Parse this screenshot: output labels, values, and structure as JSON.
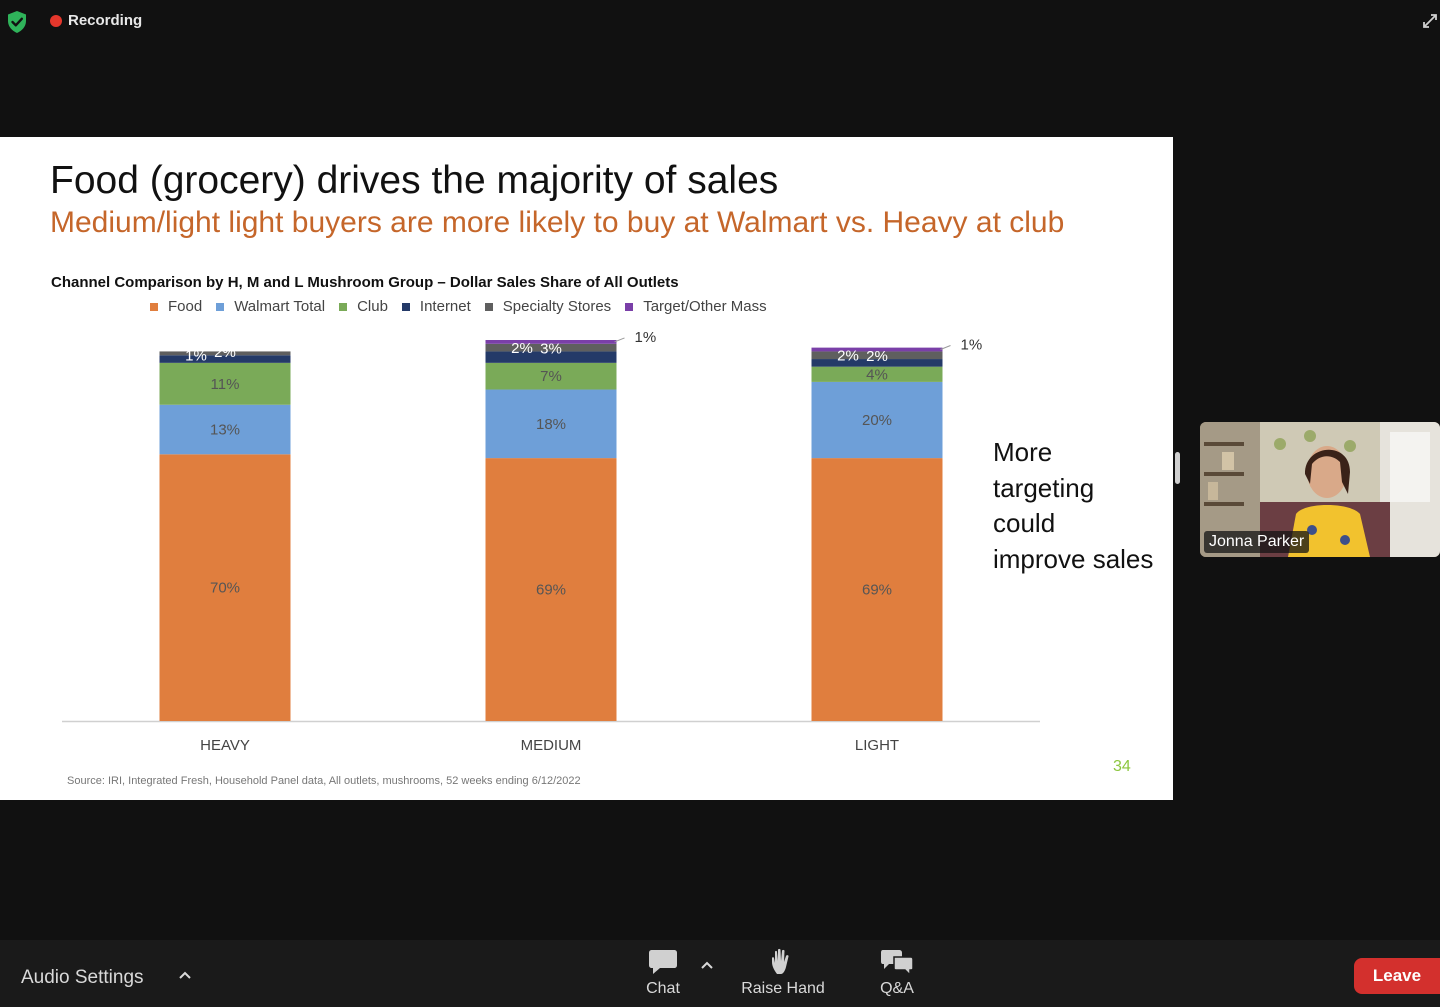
{
  "topbar": {
    "recording_label": "Recording",
    "colors": {
      "recording_dot": "#e5372c",
      "shield": "#2fb35a"
    }
  },
  "slide": {
    "title": "Food (grocery) drives the majority of sales",
    "subtitle": "Medium/light light buyers are more likely to buy at Walmart vs. Heavy at club",
    "side_note_lines": [
      "More",
      "targeting",
      "could",
      "improve sales"
    ],
    "page_number": "34",
    "source": "Source: IRI, Integrated Fresh, Household Panel data, All outlets, mushrooms, 52 weeks ending 6/12/2022"
  },
  "chart_data": {
    "type": "bar",
    "stacked": true,
    "title": "Channel Comparison by H, M and L Mushroom Group – Dollar Sales Share of All Outlets",
    "categories": [
      "HEAVY",
      "MEDIUM",
      "LIGHT"
    ],
    "legend_position": "top",
    "grid": false,
    "ylim": [
      0,
      100
    ],
    "series": [
      {
        "name": "Food",
        "color": "#e07e3e",
        "values": [
          70,
          69,
          69
        ],
        "labels": [
          "70%",
          "69%",
          "69%"
        ]
      },
      {
        "name": "Walmart Total",
        "color": "#6e9fd8",
        "values": [
          13,
          18,
          20
        ],
        "labels": [
          "13%",
          "18%",
          "20%"
        ]
      },
      {
        "name": "Club",
        "color": "#7aaa58",
        "values": [
          11,
          7,
          4
        ],
        "labels": [
          "11%",
          "7%",
          "4%"
        ]
      },
      {
        "name": "Internet",
        "color": "#243a68",
        "values": [
          2,
          3,
          2
        ],
        "labels": [
          "2%",
          "3%",
          "2%"
        ]
      },
      {
        "name": "Specialty Stores",
        "color": "#5f5f5f",
        "values": [
          1,
          2,
          2
        ],
        "labels": [
          "1%",
          "2%",
          "2%"
        ]
      },
      {
        "name": "Target/Other Mass",
        "color": "#7a3fa8",
        "values": [
          0,
          1,
          1
        ],
        "labels": [
          "",
          "1%",
          "1%"
        ]
      }
    ]
  },
  "video": {
    "participant_name": "Jonna Parker"
  },
  "bottombar": {
    "audio_settings_label": "Audio Settings",
    "chat_label": "Chat",
    "raise_hand_label": "Raise Hand",
    "qa_label": "Q&A",
    "leave_label": "Leave",
    "colors": {
      "leave": "#d3302d"
    }
  }
}
